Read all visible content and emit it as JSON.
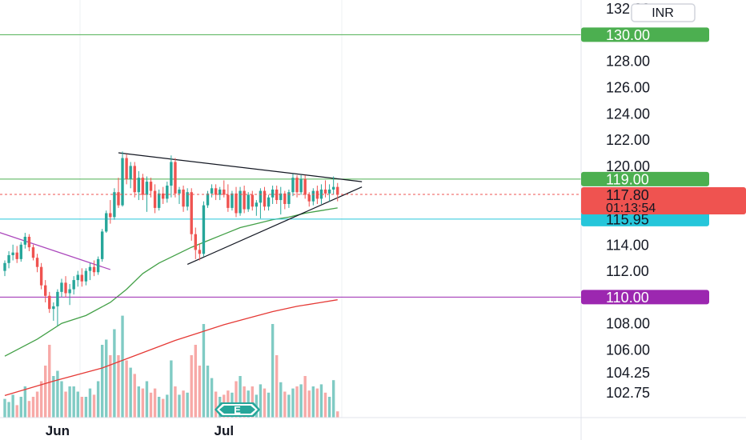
{
  "currency_button": "INR",
  "current_price": "117.80",
  "countdown": "01:13:54",
  "earnings_marker": "E",
  "colors": {
    "up": "#26a69a",
    "down": "#ef5350",
    "level_green": "#4caf50",
    "level_cyan": "#26c6da",
    "level_purple": "#9c27b0",
    "ma_fast": "#43a047",
    "ma_slow": "#e53935",
    "trend_purple": "#ab47bc",
    "triangle": "#131722"
  },
  "chart_data": {
    "type": "candlestick",
    "y_ticks": [
      {
        "label": "132.00",
        "value": 132.0
      },
      {
        "label": "128.00",
        "value": 128.0
      },
      {
        "label": "126.00",
        "value": 126.0
      },
      {
        "label": "124.00",
        "value": 124.0
      },
      {
        "label": "122.00",
        "value": 122.0
      },
      {
        "label": "120.00",
        "value": 120.0
      },
      {
        "label": "114.00",
        "value": 114.0
      },
      {
        "label": "112.00",
        "value": 112.0
      },
      {
        "label": "108.00",
        "value": 108.0
      },
      {
        "label": "106.00",
        "value": 106.0
      },
      {
        "label": "104.25",
        "value": 104.25
      },
      {
        "label": "102.75",
        "value": 102.75
      }
    ],
    "x_ticks": [
      {
        "label": "Jun",
        "index": 13
      },
      {
        "label": "Jul",
        "index": 54
      }
    ],
    "price_levels": [
      {
        "label": "130.00",
        "value": 130.0,
        "color": "#4caf50"
      },
      {
        "label": "119.00",
        "value": 119.0,
        "color": "#4caf50"
      },
      {
        "label": "115.95",
        "value": 115.95,
        "color": "#26c6da"
      },
      {
        "label": "110.00",
        "value": 110.0,
        "color": "#9c27b0"
      }
    ],
    "candles": [
      [
        112.0,
        112.8,
        111.6,
        112.6,
        18
      ],
      [
        112.6,
        113.5,
        112.2,
        113.2,
        15
      ],
      [
        113.2,
        114.0,
        112.8,
        113.4,
        22
      ],
      [
        113.4,
        113.9,
        112.6,
        112.9,
        12
      ],
      [
        112.9,
        114.2,
        112.7,
        114.0,
        20
      ],
      [
        114.0,
        114.9,
        113.7,
        114.6,
        30
      ],
      [
        114.6,
        114.8,
        113.5,
        113.8,
        16
      ],
      [
        113.8,
        114.0,
        112.8,
        113.0,
        20
      ],
      [
        113.0,
        113.3,
        111.9,
        112.3,
        25
      ],
      [
        112.3,
        112.6,
        110.6,
        110.9,
        35
      ],
      [
        110.9,
        111.3,
        109.6,
        110.1,
        50
      ],
      [
        110.1,
        110.4,
        108.8,
        109.1,
        70
      ],
      [
        109.1,
        109.6,
        108.2,
        109.3,
        40
      ],
      [
        109.3,
        110.6,
        107.8,
        110.4,
        45
      ],
      [
        110.4,
        111.4,
        110.0,
        111.1,
        35
      ],
      [
        111.1,
        111.6,
        110.0,
        110.3,
        25
      ],
      [
        110.3,
        111.0,
        109.4,
        110.6,
        30
      ],
      [
        110.6,
        111.6,
        110.2,
        111.3,
        30
      ],
      [
        111.3,
        112.0,
        110.8,
        111.7,
        25
      ],
      [
        111.7,
        112.2,
        110.8,
        111.2,
        20
      ],
      [
        111.2,
        112.2,
        110.9,
        112.0,
        20
      ],
      [
        112.0,
        112.6,
        111.3,
        112.3,
        28
      ],
      [
        112.3,
        112.8,
        111.6,
        111.9,
        22
      ],
      [
        111.9,
        113.1,
        111.7,
        112.9,
        35
      ],
      [
        112.9,
        115.2,
        112.7,
        115.0,
        70
      ],
      [
        115.0,
        116.6,
        114.9,
        116.4,
        75
      ],
      [
        116.4,
        117.4,
        115.6,
        116.1,
        60
      ],
      [
        116.1,
        118.3,
        115.9,
        118.0,
        85
      ],
      [
        118.0,
        119.1,
        116.8,
        117.0,
        60
      ],
      [
        117.0,
        121.1,
        116.9,
        120.6,
        98
      ],
      [
        120.6,
        120.9,
        118.6,
        119.0,
        55
      ],
      [
        119.0,
        120.3,
        118.3,
        120.0,
        48
      ],
      [
        120.0,
        120.3,
        117.6,
        118.0,
        42
      ],
      [
        118.0,
        119.6,
        117.4,
        119.1,
        30
      ],
      [
        119.1,
        119.4,
        117.4,
        117.8,
        28
      ],
      [
        117.8,
        119.2,
        116.5,
        118.8,
        35
      ],
      [
        118.8,
        119.1,
        117.6,
        118.1,
        24
      ],
      [
        118.1,
        118.6,
        116.4,
        116.8,
        28
      ],
      [
        116.8,
        118.2,
        116.6,
        117.9,
        20
      ],
      [
        117.9,
        118.4,
        117.1,
        117.5,
        18
      ],
      [
        117.5,
        118.8,
        117.2,
        118.5,
        22
      ],
      [
        118.5,
        120.8,
        117.6,
        120.3,
        55
      ],
      [
        120.3,
        120.6,
        117.6,
        117.9,
        30
      ],
      [
        117.9,
        118.4,
        117.1,
        118.2,
        22
      ],
      [
        118.2,
        118.5,
        116.5,
        116.9,
        26
      ],
      [
        116.9,
        118.3,
        116.6,
        118.0,
        24
      ],
      [
        118.0,
        118.3,
        114.3,
        114.8,
        60
      ],
      [
        114.8,
        115.3,
        112.9,
        113.6,
        70
      ],
      [
        113.6,
        114.1,
        112.8,
        113.3,
        50
      ],
      [
        113.3,
        117.3,
        113.1,
        117.0,
        90
      ],
      [
        117.0,
        118.1,
        116.8,
        117.9,
        50
      ],
      [
        117.9,
        118.6,
        117.6,
        118.3,
        38
      ],
      [
        118.3,
        118.6,
        117.4,
        117.8,
        25
      ],
      [
        117.8,
        118.4,
        117.4,
        118.2,
        20
      ],
      [
        118.2,
        118.9,
        117.6,
        117.8,
        22
      ],
      [
        117.8,
        118.6,
        116.5,
        116.8,
        26
      ],
      [
        116.8,
        118.1,
        116.6,
        117.9,
        24
      ],
      [
        117.9,
        118.4,
        116.1,
        116.4,
        35
      ],
      [
        116.4,
        118.4,
        116.2,
        118.1,
        40
      ],
      [
        118.1,
        118.5,
        116.4,
        116.7,
        30
      ],
      [
        116.7,
        118.0,
        116.5,
        117.8,
        26
      ],
      [
        117.8,
        118.1,
        116.6,
        116.9,
        30
      ],
      [
        116.9,
        117.4,
        116.2,
        117.2,
        22
      ],
      [
        117.2,
        118.3,
        116.0,
        118.1,
        32
      ],
      [
        118.1,
        118.4,
        116.6,
        116.9,
        28
      ],
      [
        116.9,
        117.8,
        116.6,
        117.6,
        24
      ],
      [
        117.6,
        118.5,
        117.1,
        118.2,
        90
      ],
      [
        118.2,
        118.5,
        117.1,
        117.4,
        60
      ],
      [
        117.4,
        118.4,
        116.3,
        117.9,
        34
      ],
      [
        117.9,
        118.1,
        116.7,
        117.1,
        25
      ],
      [
        117.1,
        118.2,
        116.8,
        118.0,
        22
      ],
      [
        118.0,
        119.4,
        117.7,
        119.1,
        28
      ],
      [
        119.1,
        119.3,
        117.6,
        118.0,
        30
      ],
      [
        118.0,
        119.3,
        117.8,
        119.0,
        32
      ],
      [
        119.0,
        119.3,
        117.5,
        117.8,
        40
      ],
      [
        117.8,
        118.0,
        116.9,
        117.3,
        26
      ],
      [
        117.3,
        118.3,
        117.0,
        118.1,
        30
      ],
      [
        118.1,
        118.5,
        117.1,
        117.5,
        28
      ],
      [
        117.5,
        118.6,
        117.1,
        118.2,
        32
      ],
      [
        118.2,
        118.9,
        117.6,
        117.9,
        24
      ],
      [
        117.9,
        118.6,
        117.3,
        118.2,
        20
      ],
      [
        118.2,
        119.2,
        117.8,
        118.4,
        36
      ],
      [
        118.4,
        118.7,
        117.3,
        117.8,
        6
      ]
    ],
    "ma_fast": [
      [
        0,
        105.5
      ],
      [
        8,
        106.8
      ],
      [
        14,
        108.0
      ],
      [
        20,
        108.6
      ],
      [
        26,
        109.6
      ],
      [
        30,
        110.6
      ],
      [
        34,
        111.8
      ],
      [
        38,
        112.6
      ],
      [
        42,
        113.2
      ],
      [
        46,
        113.8
      ],
      [
        50,
        114.3
      ],
      [
        54,
        114.8
      ],
      [
        58,
        115.3
      ],
      [
        62,
        115.6
      ],
      [
        66,
        115.9
      ],
      [
        70,
        116.1
      ],
      [
        74,
        116.4
      ],
      [
        78,
        116.6
      ],
      [
        82,
        116.8
      ]
    ],
    "ma_slow": [
      [
        0,
        102.5
      ],
      [
        12,
        103.6
      ],
      [
        24,
        104.6
      ],
      [
        30,
        105.3
      ],
      [
        36,
        106.0
      ],
      [
        42,
        106.7
      ],
      [
        48,
        107.3
      ],
      [
        54,
        107.9
      ],
      [
        60,
        108.4
      ],
      [
        66,
        108.9
      ],
      [
        72,
        109.3
      ],
      [
        78,
        109.6
      ],
      [
        82,
        109.8
      ]
    ],
    "trend_lines": [
      {
        "from": [
          -2,
          115.0
        ],
        "to": [
          26,
          112.1
        ],
        "color": "#ab47bc"
      },
      {
        "from": [
          28,
          121.0
        ],
        "to": [
          88,
          118.8
        ],
        "color": "#131722"
      },
      {
        "from": [
          45,
          112.5
        ],
        "to": [
          88,
          118.4
        ],
        "color": "#131722"
      }
    ]
  }
}
